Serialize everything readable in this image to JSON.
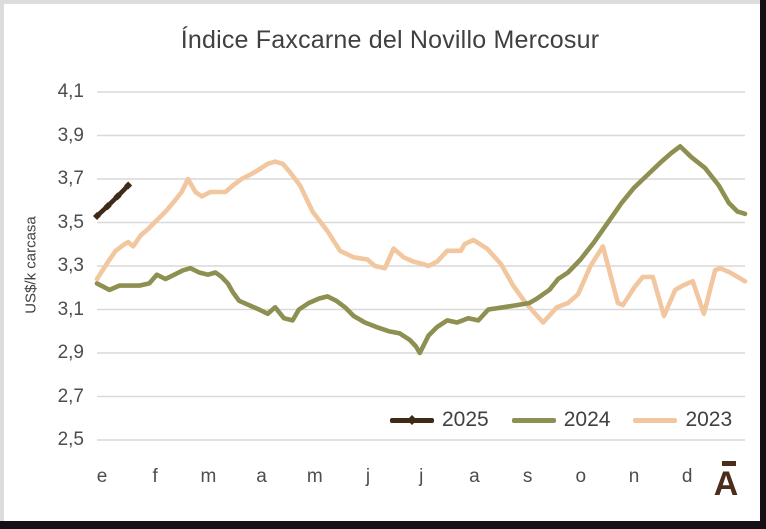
{
  "title": "Índice Faxcarne del Novillo Mercosur",
  "y_axis": {
    "label": "US$/k carcasa",
    "ticks": [
      "4,1",
      "3,9",
      "3,7",
      "3,5",
      "3,3",
      "3,1",
      "2,9",
      "2,7",
      "2,5"
    ]
  },
  "x_axis": {
    "ticks": [
      "e",
      "f",
      "m",
      "a",
      "m",
      "j",
      "j",
      "a",
      "s",
      "o",
      "n",
      "d"
    ]
  },
  "logo": {
    "letter": "A"
  },
  "colors": {
    "gridline": "#d9d9d9",
    "title_text": "#404040",
    "tick_text": "#4d4d4d",
    "series_2025": "#3f2a17",
    "series_2024": "#8e9051",
    "series_2023": "#f2c7a0",
    "logo_brown": "#4a2d1b",
    "window_border_gray": "#dedbde",
    "window_edge_black": "#151015"
  },
  "chart_data": {
    "type": "line",
    "title": "Índice Faxcarne del Novillo Mercosur",
    "xlabel": "",
    "ylabel": "US$/k carcasa",
    "ylim": [
      2.5,
      4.1
    ],
    "y_tick_step": 0.2,
    "grid": true,
    "legend_position": "bottom-right-inside",
    "x_unit": "week_of_year",
    "x_range": [
      0,
      52
    ],
    "x_tick_labels": [
      "e",
      "f",
      "m",
      "a",
      "m",
      "j",
      "j",
      "a",
      "s",
      "o",
      "n",
      "d"
    ],
    "series": [
      {
        "name": "2025",
        "color": "#3f2a17",
        "marker": "diamond",
        "points": [
          [
            0,
            3.53
          ],
          [
            0.85,
            3.575
          ],
          [
            1.65,
            3.62
          ],
          [
            2.5,
            3.67
          ]
        ]
      },
      {
        "name": "2024",
        "color": "#8e9051",
        "marker": "none",
        "points": [
          [
            0,
            3.22
          ],
          [
            1.0,
            3.19
          ],
          [
            1.8,
            3.21
          ],
          [
            2.6,
            3.21
          ],
          [
            3.4,
            3.21
          ],
          [
            4.2,
            3.22
          ],
          [
            4.8,
            3.26
          ],
          [
            5.5,
            3.24
          ],
          [
            6.2,
            3.26
          ],
          [
            6.9,
            3.28
          ],
          [
            7.5,
            3.29
          ],
          [
            8.2,
            3.27
          ],
          [
            8.9,
            3.26
          ],
          [
            9.5,
            3.27
          ],
          [
            10.0,
            3.25
          ],
          [
            10.5,
            3.22
          ],
          [
            10.9,
            3.18
          ],
          [
            11.4,
            3.14
          ],
          [
            12.2,
            3.12
          ],
          [
            13.0,
            3.1
          ],
          [
            13.7,
            3.08
          ],
          [
            14.3,
            3.11
          ],
          [
            15.0,
            3.06
          ],
          [
            15.7,
            3.05
          ],
          [
            16.2,
            3.1
          ],
          [
            17.0,
            3.13
          ],
          [
            17.8,
            3.15
          ],
          [
            18.5,
            3.16
          ],
          [
            19.2,
            3.14
          ],
          [
            19.9,
            3.11
          ],
          [
            20.6,
            3.07
          ],
          [
            21.5,
            3.04
          ],
          [
            22.4,
            3.02
          ],
          [
            23.4,
            3.0
          ],
          [
            24.3,
            2.99
          ],
          [
            25.1,
            2.96
          ],
          [
            25.6,
            2.93
          ],
          [
            25.9,
            2.9
          ],
          [
            26.6,
            2.98
          ],
          [
            27.3,
            3.02
          ],
          [
            28.1,
            3.05
          ],
          [
            28.9,
            3.04
          ],
          [
            29.8,
            3.06
          ],
          [
            30.6,
            3.05
          ],
          [
            31.4,
            3.1
          ],
          [
            32.6,
            3.11
          ],
          [
            33.7,
            3.12
          ],
          [
            34.7,
            3.13
          ],
          [
            35.3,
            3.15
          ],
          [
            36.3,
            3.19
          ],
          [
            37.0,
            3.24
          ],
          [
            37.8,
            3.27
          ],
          [
            38.8,
            3.33
          ],
          [
            39.9,
            3.41
          ],
          [
            41.0,
            3.5
          ],
          [
            42.1,
            3.59
          ],
          [
            43.1,
            3.66
          ],
          [
            44.2,
            3.72
          ],
          [
            45.3,
            3.78
          ],
          [
            46.1,
            3.82
          ],
          [
            46.8,
            3.85
          ],
          [
            47.7,
            3.8
          ],
          [
            48.8,
            3.75
          ],
          [
            49.9,
            3.67
          ],
          [
            50.7,
            3.59
          ],
          [
            51.4,
            3.55
          ],
          [
            52.0,
            3.54
          ]
        ]
      },
      {
        "name": "2023",
        "color": "#f2c7a0",
        "marker": "none",
        "points": [
          [
            0,
            3.24
          ],
          [
            0.9,
            3.32
          ],
          [
            1.5,
            3.37
          ],
          [
            2.2,
            3.4
          ],
          [
            2.5,
            3.41
          ],
          [
            2.9,
            3.39
          ],
          [
            3.5,
            3.44
          ],
          [
            4.1,
            3.47
          ],
          [
            4.8,
            3.51
          ],
          [
            5.5,
            3.55
          ],
          [
            6.1,
            3.59
          ],
          [
            6.8,
            3.64
          ],
          [
            7.3,
            3.7
          ],
          [
            7.9,
            3.64
          ],
          [
            8.4,
            3.62
          ],
          [
            9.1,
            3.64
          ],
          [
            9.7,
            3.64
          ],
          [
            10.3,
            3.64
          ],
          [
            10.9,
            3.67
          ],
          [
            11.6,
            3.7
          ],
          [
            12.3,
            3.72
          ],
          [
            12.9,
            3.74
          ],
          [
            13.7,
            3.77
          ],
          [
            14.3,
            3.78
          ],
          [
            14.9,
            3.77
          ],
          [
            15.5,
            3.73
          ],
          [
            16.3,
            3.67
          ],
          [
            17.3,
            3.55
          ],
          [
            18.5,
            3.46
          ],
          [
            19.5,
            3.37
          ],
          [
            20.6,
            3.34
          ],
          [
            21.7,
            3.33
          ],
          [
            22.3,
            3.3
          ],
          [
            23.1,
            3.29
          ],
          [
            23.8,
            3.38
          ],
          [
            24.6,
            3.34
          ],
          [
            25.4,
            3.32
          ],
          [
            26.1,
            3.31
          ],
          [
            26.6,
            3.3
          ],
          [
            27.3,
            3.32
          ],
          [
            28.1,
            3.37
          ],
          [
            29.2,
            3.37
          ],
          [
            29.5,
            3.4
          ],
          [
            30.2,
            3.42
          ],
          [
            31.3,
            3.38
          ],
          [
            32.4,
            3.31
          ],
          [
            33.4,
            3.21
          ],
          [
            34.4,
            3.13
          ],
          [
            35.8,
            3.04
          ],
          [
            36.9,
            3.11
          ],
          [
            37.8,
            3.13
          ],
          [
            38.6,
            3.17
          ],
          [
            39.6,
            3.3
          ],
          [
            40.6,
            3.39
          ],
          [
            41.8,
            3.13
          ],
          [
            42.2,
            3.12
          ],
          [
            43.1,
            3.2
          ],
          [
            43.8,
            3.25
          ],
          [
            44.6,
            3.25
          ],
          [
            45.5,
            3.07
          ],
          [
            46.4,
            3.19
          ],
          [
            47.0,
            3.21
          ],
          [
            47.8,
            3.23
          ],
          [
            48.7,
            3.08
          ],
          [
            49.6,
            3.28
          ],
          [
            50.0,
            3.29
          ],
          [
            50.8,
            3.27
          ],
          [
            52.0,
            3.23
          ]
        ]
      }
    ]
  }
}
